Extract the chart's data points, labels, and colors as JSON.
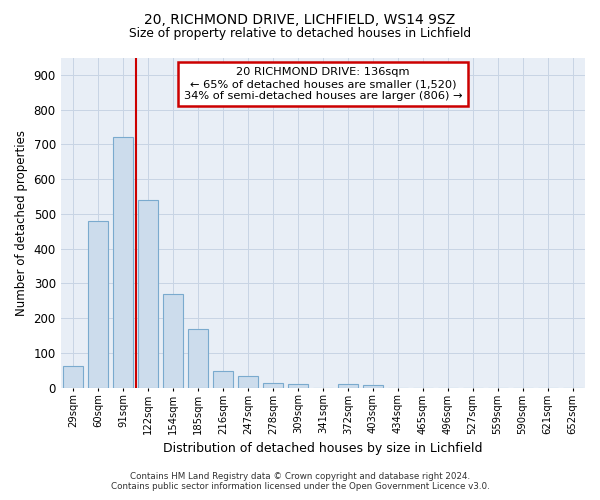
{
  "title1": "20, RICHMOND DRIVE, LICHFIELD, WS14 9SZ",
  "title2": "Size of property relative to detached houses in Lichfield",
  "xlabel": "Distribution of detached houses by size in Lichfield",
  "ylabel": "Number of detached properties",
  "categories": [
    "29sqm",
    "60sqm",
    "91sqm",
    "122sqm",
    "154sqm",
    "185sqm",
    "216sqm",
    "247sqm",
    "278sqm",
    "309sqm",
    "341sqm",
    "372sqm",
    "403sqm",
    "434sqm",
    "465sqm",
    "496sqm",
    "527sqm",
    "559sqm",
    "590sqm",
    "621sqm",
    "652sqm"
  ],
  "values": [
    62,
    480,
    720,
    540,
    270,
    170,
    47,
    33,
    15,
    12,
    0,
    10,
    8,
    0,
    0,
    0,
    0,
    0,
    0,
    0,
    0
  ],
  "bar_color": "#ccdcec",
  "bar_edge_color": "#7aaace",
  "red_line_x": 2.5,
  "annotation_title": "20 RICHMOND DRIVE: 136sqm",
  "annotation_line1": "← 65% of detached houses are smaller (1,520)",
  "annotation_line2": "34% of semi-detached houses are larger (806) →",
  "annotation_box_color": "#ffffff",
  "annotation_box_edge_color": "#cc0000",
  "grid_color": "#c8d4e4",
  "bg_color": "#e8eef6",
  "footer1": "Contains HM Land Registry data © Crown copyright and database right 2024.",
  "footer2": "Contains public sector information licensed under the Open Government Licence v3.0.",
  "ylim": [
    0,
    950
  ],
  "yticks": [
    0,
    100,
    200,
    300,
    400,
    500,
    600,
    700,
    800,
    900
  ]
}
